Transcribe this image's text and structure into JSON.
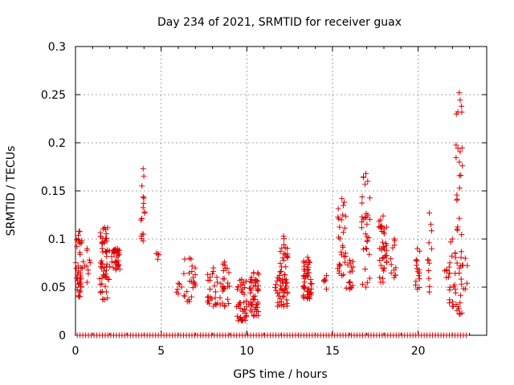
{
  "chart_data": {
    "type": "scatter",
    "title": "Day 234 of 2021, SRMTID for receiver guax",
    "xlabel": "GPS time / hours",
    "ylabel": "SRMTID / TECUs",
    "xlim": [
      0,
      24
    ],
    "ylim": [
      0,
      0.3
    ],
    "x_ticks": [
      0,
      5,
      10,
      15,
      20
    ],
    "x_tick_labels": [
      "0",
      "5",
      "10",
      "15",
      "20"
    ],
    "y_ticks": [
      0,
      0.05,
      0.1,
      0.15,
      0.2,
      0.25,
      0.3
    ],
    "y_tick_labels": [
      "0",
      "0.05",
      "0.1",
      "0.15",
      "0.2",
      "0.25",
      "0.3"
    ],
    "grid": true,
    "marker": "+",
    "color": "#dd0000",
    "series": [
      {
        "name": "SRMTID",
        "clusters": [
          {
            "x": [
              0.0,
              0.4
            ],
            "y": [
              0.04,
              0.108
            ],
            "n": 38
          },
          {
            "x": [
              0.45,
              0.9
            ],
            "y": [
              0.055,
              0.09
            ],
            "n": 8
          },
          {
            "x": [
              1.4,
              2.0
            ],
            "y": [
              0.037,
              0.112
            ],
            "n": 55
          },
          {
            "x": [
              2.1,
              2.6
            ],
            "y": [
              0.068,
              0.09
            ],
            "n": 30
          },
          {
            "x": [
              3.8,
              4.1
            ],
            "y": [
              0.098,
              0.173
            ],
            "n": 14
          },
          {
            "x": [
              4.7,
              4.9
            ],
            "y": [
              0.079,
              0.085
            ],
            "n": 2
          },
          {
            "x": [
              5.8,
              6.2
            ],
            "y": [
              0.043,
              0.054
            ],
            "n": 4
          },
          {
            "x": [
              6.3,
              7.0
            ],
            "y": [
              0.035,
              0.08
            ],
            "n": 22
          },
          {
            "x": [
              7.7,
              8.4
            ],
            "y": [
              0.03,
              0.07
            ],
            "n": 22
          },
          {
            "x": [
              8.4,
              9.0
            ],
            "y": [
              0.03,
              0.076
            ],
            "n": 24
          },
          {
            "x": [
              9.4,
              10.0
            ],
            "y": [
              0.015,
              0.058
            ],
            "n": 38
          },
          {
            "x": [
              10.1,
              10.7
            ],
            "y": [
              0.02,
              0.065
            ],
            "n": 48
          },
          {
            "x": [
              11.6,
              12.0
            ],
            "y": [
              0.03,
              0.06
            ],
            "n": 12
          },
          {
            "x": [
              11.9,
              12.4
            ],
            "y": [
              0.03,
              0.103
            ],
            "n": 48
          },
          {
            "x": [
              13.3,
              13.8
            ],
            "y": [
              0.038,
              0.081
            ],
            "n": 48
          },
          {
            "x": [
              14.4,
              14.9
            ],
            "y": [
              0.048,
              0.062
            ],
            "n": 4
          },
          {
            "x": [
              15.3,
              15.8
            ],
            "y": [
              0.062,
              0.142
            ],
            "n": 28
          },
          {
            "x": [
              15.8,
              16.2
            ],
            "y": [
              0.048,
              0.078
            ],
            "n": 14
          },
          {
            "x": [
              16.7,
              17.2
            ],
            "y": [
              0.05,
              0.168
            ],
            "n": 30
          },
          {
            "x": [
              17.7,
              18.2
            ],
            "y": [
              0.055,
              0.124
            ],
            "n": 36
          },
          {
            "x": [
              18.4,
              18.8
            ],
            "y": [
              0.06,
              0.1
            ],
            "n": 10
          },
          {
            "x": [
              19.8,
              20.1
            ],
            "y": [
              0.048,
              0.09
            ],
            "n": 14
          },
          {
            "x": [
              20.5,
              20.8
            ],
            "y": [
              0.045,
              0.127
            ],
            "n": 10
          },
          {
            "x": [
              21.5,
              21.8
            ],
            "y": [
              0.06,
              0.068
            ],
            "n": 3
          },
          {
            "x": [
              21.8,
              22.2
            ],
            "y": [
              0.03,
              0.1
            ],
            "n": 20
          },
          {
            "x": [
              22.2,
              22.6
            ],
            "y": [
              0.022,
              0.252
            ],
            "n": 40
          },
          {
            "x": [
              22.6,
              22.9
            ],
            "y": [
              0.048,
              0.08
            ],
            "n": 4
          }
        ],
        "baseline_zero_points": {
          "x_range": [
            0.1,
            22.8
          ],
          "y": 0,
          "n": 140
        }
      }
    ]
  }
}
